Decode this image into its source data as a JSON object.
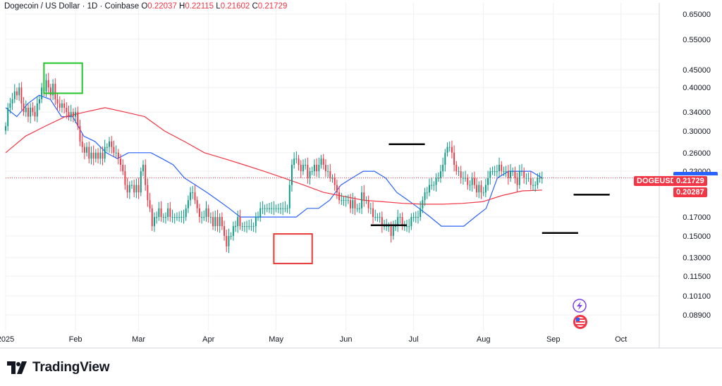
{
  "header": {
    "symbol": "Dogecoin / US Dollar · 1D · Coinbase",
    "open_label": "O",
    "open": "0.22037",
    "high_label": "H",
    "high": "0.22115",
    "low_label": "L",
    "low": "0.21602",
    "close_label": "C",
    "close": "0.21729"
  },
  "brand": {
    "name": "TradingView"
  },
  "tags": {
    "symbol_tag": "DOGEUSD",
    "price_tag": "0.21729",
    "ma_tag": "0.20287"
  },
  "colors": {
    "up": "#089981",
    "down": "#f23645",
    "ma_fast": "#2962ff",
    "ma_slow": "#f23645",
    "box_green": "#22c42a",
    "box_red": "#e53935",
    "grid": "#eef0f3"
  },
  "chart_data": {
    "type": "candlestick",
    "ylabel": "",
    "xlabel": "",
    "y_scale": "log",
    "ylim": [
      0.08,
      0.7
    ],
    "grid": true,
    "y_ticks": [
      0.65,
      0.55,
      0.45,
      0.4,
      0.34,
      0.3,
      0.26,
      0.23,
      0.17,
      0.15,
      0.13,
      0.115,
      0.101,
      0.089
    ],
    "y_tick_labels": [
      "0.65000",
      "0.55000",
      "0.45000",
      "0.40000",
      "0.34000",
      "0.30000",
      "0.26000",
      "0.23000",
      "0.17000",
      "0.15000",
      "0.13000",
      "0.11500",
      "0.10100",
      "0.08900"
    ],
    "x_ticks": [
      "2025",
      "Feb",
      "Mar",
      "Apr",
      "May",
      "Jun",
      "Jul",
      "Aug",
      "Sep",
      "Oct"
    ],
    "x_tick_labels": [
      "2025",
      "Feb",
      "Mar",
      "Apr",
      "May",
      "Jun",
      "Jul",
      "Aug",
      "Sep",
      "Oct"
    ],
    "x_range_days": [
      0,
      290
    ],
    "month_start_days": [
      0,
      31,
      59,
      90,
      120,
      151,
      181,
      212,
      243,
      273
    ],
    "closes": [
      0.31,
      0.35,
      0.36,
      0.37,
      0.39,
      0.38,
      0.4,
      0.36,
      0.34,
      0.35,
      0.33,
      0.35,
      0.34,
      0.33,
      0.36,
      0.37,
      0.4,
      0.39,
      0.42,
      0.4,
      0.38,
      0.41,
      0.37,
      0.36,
      0.35,
      0.36,
      0.35,
      0.34,
      0.33,
      0.34,
      0.33,
      0.34,
      0.31,
      0.28,
      0.27,
      0.26,
      0.27,
      0.25,
      0.26,
      0.25,
      0.26,
      0.25,
      0.26,
      0.25,
      0.27,
      0.27,
      0.28,
      0.27,
      0.26,
      0.26,
      0.25,
      0.24,
      0.23,
      0.21,
      0.2,
      0.21,
      0.21,
      0.2,
      0.21,
      0.2,
      0.23,
      0.24,
      0.21,
      0.19,
      0.18,
      0.16,
      0.17,
      0.17,
      0.18,
      0.17,
      0.17,
      0.17,
      0.18,
      0.17,
      0.17,
      0.17,
      0.17,
      0.17,
      0.17,
      0.17,
      0.18,
      0.19,
      0.2,
      0.2,
      0.19,
      0.18,
      0.17,
      0.17,
      0.17,
      0.18,
      0.17,
      0.17,
      0.16,
      0.17,
      0.16,
      0.17,
      0.16,
      0.15,
      0.14,
      0.15,
      0.15,
      0.16,
      0.16,
      0.17,
      0.16,
      0.16,
      0.16,
      0.16,
      0.16,
      0.16,
      0.16,
      0.17,
      0.17,
      0.18,
      0.18,
      0.18,
      0.18,
      0.18,
      0.18,
      0.18,
      0.18,
      0.18,
      0.18,
      0.18,
      0.18,
      0.18,
      0.21,
      0.24,
      0.25,
      0.25,
      0.24,
      0.23,
      0.24,
      0.24,
      0.22,
      0.23,
      0.23,
      0.24,
      0.23,
      0.24,
      0.25,
      0.24,
      0.23,
      0.23,
      0.22,
      0.22,
      0.21,
      0.2,
      0.19,
      0.19,
      0.19,
      0.19,
      0.19,
      0.18,
      0.19,
      0.18,
      0.18,
      0.18,
      0.2,
      0.19,
      0.19,
      0.18,
      0.18,
      0.17,
      0.17,
      0.17,
      0.17,
      0.16,
      0.16,
      0.16,
      0.16,
      0.15,
      0.16,
      0.16,
      0.17,
      0.17,
      0.16,
      0.16,
      0.16,
      0.16,
      0.17,
      0.17,
      0.17,
      0.17,
      0.18,
      0.19,
      0.2,
      0.2,
      0.21,
      0.21,
      0.21,
      0.22,
      0.22,
      0.23,
      0.24,
      0.26,
      0.27,
      0.27,
      0.26,
      0.24,
      0.23,
      0.23,
      0.22,
      0.22,
      0.22,
      0.21,
      0.21,
      0.22,
      0.21,
      0.2,
      0.21,
      0.2,
      0.2,
      0.21,
      0.22,
      0.23,
      0.23,
      0.23,
      0.23,
      0.24,
      0.23,
      0.23,
      0.23,
      0.22,
      0.23,
      0.23,
      0.22,
      0.21,
      0.23,
      0.23,
      0.22,
      0.22,
      0.22,
      0.21,
      0.21,
      0.21,
      0.22,
      0.22,
      0.22
    ],
    "series": [
      {
        "name": "",
        "values": [
          0.35,
          0.33,
          0.36,
          0.38,
          0.37,
          0.33,
          0.33,
          0.29,
          0.28,
          0.26,
          0.25,
          0.26,
          0.26,
          0.26,
          0.25,
          0.24,
          0.22,
          0.21,
          0.2,
          0.19,
          0.18,
          0.17,
          0.17,
          0.17,
          0.17,
          0.17,
          0.17,
          0.18,
          0.18,
          0.19,
          0.21,
          0.22,
          0.23,
          0.23,
          0.22,
          0.2,
          0.19,
          0.18,
          0.17,
          0.16,
          0.16,
          0.16,
          0.17,
          0.18,
          0.22,
          0.23,
          0.23,
          0.23,
          0.22
        ]
      },
      {
        "name": "",
        "values": [
          0.26,
          0.29,
          0.31,
          0.33,
          0.34,
          0.35,
          0.34,
          0.33,
          0.3,
          0.28,
          0.26,
          0.25,
          0.24,
          0.23,
          0.22,
          0.21,
          0.2,
          0.195,
          0.19,
          0.188,
          0.186,
          0.185,
          0.185,
          0.186,
          0.188,
          0.196,
          0.202,
          0.203
        ]
      }
    ],
    "annotation_boxes": [
      {
        "color": "green",
        "day_from": 17,
        "day_to": 34,
        "price_low": 0.385,
        "price_high": 0.47
      },
      {
        "color": "red",
        "day_from": 119,
        "day_to": 136,
        "price_low": 0.125,
        "price_high": 0.152
      }
    ],
    "annotation_lines": [
      {
        "day_from": 170,
        "day_to": 186,
        "price": 0.275
      },
      {
        "day_from": 162,
        "day_to": 178,
        "price": 0.161
      },
      {
        "day_from": 238,
        "day_to": 254,
        "price": 0.153
      },
      {
        "day_from": 252,
        "day_to": 268,
        "price": 0.197
      }
    ]
  }
}
